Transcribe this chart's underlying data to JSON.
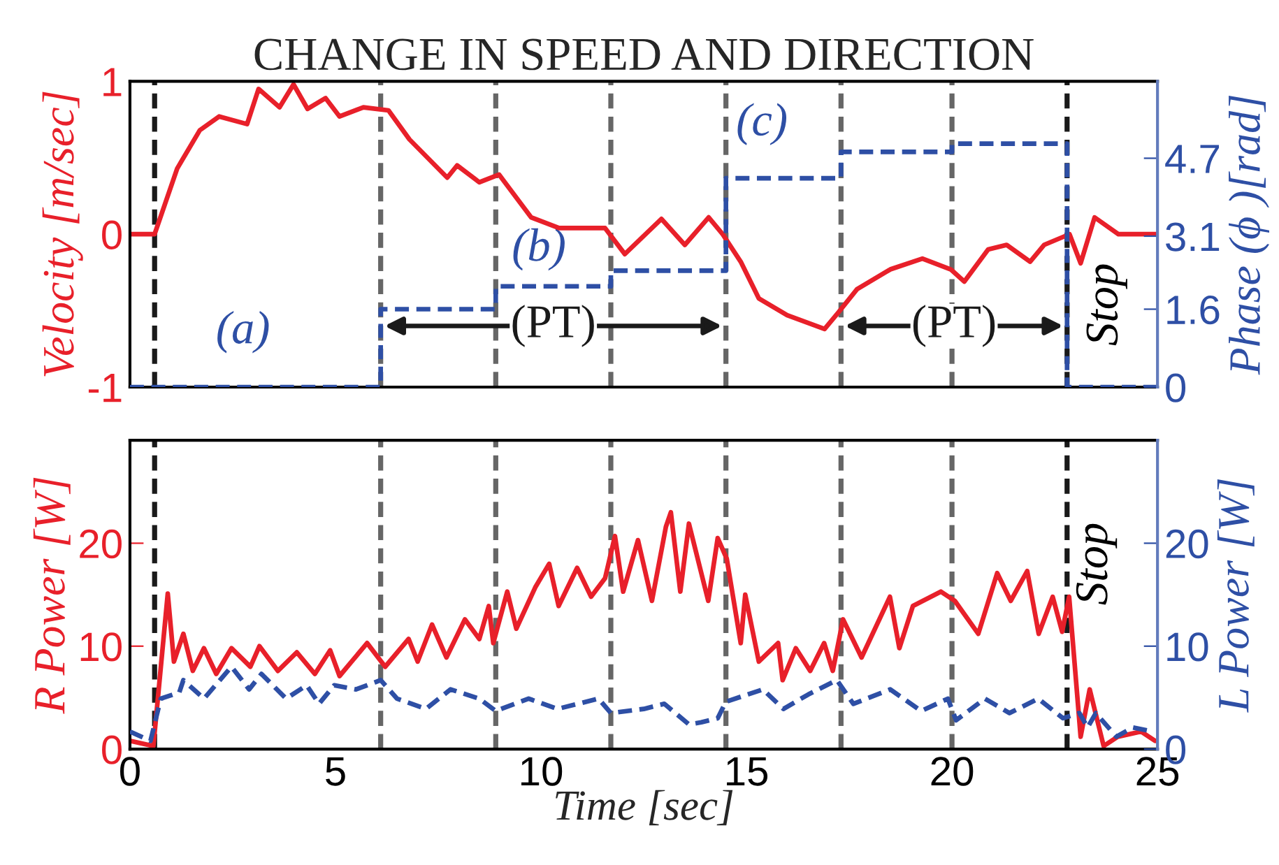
{
  "chart_data": [
    {
      "type": "line",
      "title": "CHANGE IN SPEED AND DIRECTION",
      "ylabel": "Velocity [m/sec]",
      "y2label": "Phase (ϕ )[rad]",
      "xlim": [
        0,
        25
      ],
      "xticks": [
        0,
        5,
        10,
        15,
        20,
        25
      ],
      "ylim": [
        -1,
        1
      ],
      "yticks": [
        -1,
        0,
        1
      ],
      "y2lim": [
        0,
        6.28
      ],
      "y2ticks": [
        0,
        1.6,
        3.1,
        4.7
      ],
      "tick_labels": "y",
      "grid": false,
      "series": [
        {
          "color": "#e8202a",
          "line_style": "solid",
          "x": [
            0,
            0.6,
            1.15,
            1.7,
            2.17,
            2.85,
            3.13,
            3.64,
            3.98,
            4.32,
            4.76,
            5.1,
            5.68,
            6.29,
            6.8,
            7.72,
            7.96,
            8.5,
            8.98,
            9.76,
            10.44,
            11.56,
            12.04,
            12.93,
            13.5,
            14.08,
            14.42,
            14.86,
            15.3,
            15.99,
            16.9,
            17.24,
            17.69,
            18.5,
            19.28,
            19.97,
            20.3,
            20.88,
            21.33,
            21.9,
            22.24,
            22.86,
            23.13,
            23.47,
            24.05,
            24.97
          ],
          "values": [
            0,
            0,
            0.43,
            0.68,
            0.77,
            0.72,
            0.95,
            0.83,
            0.98,
            0.82,
            0.89,
            0.77,
            0.83,
            0.81,
            0.62,
            0.37,
            0.45,
            0.34,
            0.39,
            0.11,
            0.04,
            0.04,
            -0.13,
            0.1,
            -0.07,
            0.11,
            0,
            -0.18,
            -0.42,
            -0.53,
            -0.62,
            -0.51,
            -0.36,
            -0.23,
            -0.16,
            -0.23,
            -0.31,
            -0.1,
            -0.07,
            -0.18,
            -0.07,
            0,
            -0.19,
            0.11,
            0,
            0
          ]
        },
        {
          "type": "step",
          "axis": "y2",
          "color": "#2e4fa5",
          "line_style": "dashed",
          "x": [
            0,
            6.1,
            8.9,
            11.7,
            14.5,
            17.3,
            20.0,
            22.8,
            25
          ],
          "values": [
            0,
            1.6,
            2.07,
            2.39,
            4.29,
            4.83,
            5.0,
            0,
            0
          ]
        }
      ],
      "ref_lines": [
        {
          "axis": "x",
          "value": 0.6,
          "color": "#1a1a1a",
          "line_style": "dashed"
        },
        {
          "axis": "x",
          "value": 6.1,
          "color": "#666666",
          "line_style": "dashed"
        },
        {
          "axis": "x",
          "value": 8.9,
          "color": "#666666",
          "line_style": "dashed"
        },
        {
          "axis": "x",
          "value": 11.7,
          "color": "#666666",
          "line_style": "dashed"
        },
        {
          "axis": "x",
          "value": 14.5,
          "color": "#666666",
          "line_style": "dashed"
        },
        {
          "axis": "x",
          "value": 17.3,
          "color": "#666666",
          "line_style": "dashed"
        },
        {
          "axis": "x",
          "value": 20.0,
          "color": "#666666",
          "line_style": "dashed"
        },
        {
          "axis": "x",
          "value": 22.8,
          "color": "#1a1a1a",
          "line_style": "dashed"
        }
      ],
      "annotations": [
        "(a)",
        "(b)",
        "(c)",
        "(PT)",
        "(PT)",
        "Stop"
      ]
    },
    {
      "type": "line",
      "xlabel": "Time [sec]",
      "ylabel": "R Power [W]",
      "y2label": "L Power [W]",
      "xlim": [
        0,
        25
      ],
      "xticks": [
        0,
        5,
        10,
        15,
        20,
        25
      ],
      "ylim": [
        0,
        30
      ],
      "yticks": [
        0,
        10,
        20
      ],
      "y2lim": [
        0,
        30
      ],
      "y2ticks": [
        0,
        10,
        20
      ],
      "grid": false,
      "series": [
        {
          "color": "#e8202a",
          "line_style": "solid",
          "x": [
            0,
            0.57,
            0.92,
            1.07,
            1.3,
            1.53,
            1.8,
            2.1,
            2.47,
            2.93,
            3.15,
            3.6,
            4.06,
            4.5,
            4.87,
            5.1,
            5.77,
            6.21,
            6.78,
            7.0,
            7.35,
            7.7,
            8.15,
            8.5,
            8.73,
            8.84,
            9.18,
            9.4,
            9.86,
            10.2,
            10.43,
            10.88,
            11.22,
            11.56,
            11.8,
            12.0,
            12.36,
            12.7,
            13.04,
            13.16,
            13.39,
            13.6,
            14.07,
            14.3,
            14.52,
            14.86,
            14.97,
            15.3,
            15.77,
            15.88,
            16.2,
            16.55,
            16.89,
            17.1,
            17.35,
            17.8,
            18.49,
            18.72,
            19.05,
            19.73,
            20.07,
            20.64,
            21.1,
            21.43,
            21.83,
            22.11,
            22.45,
            22.68,
            22.85,
            23.13,
            23.35,
            23.69,
            24.03,
            24.6,
            24.94
          ],
          "values": [
            0.8,
            0.3,
            15.1,
            8.5,
            11.2,
            7.6,
            9.8,
            7.3,
            9.8,
            8,
            10,
            7.6,
            9.4,
            7.3,
            9.6,
            7.1,
            10.3,
            8,
            10.7,
            8.5,
            12.1,
            8.9,
            12.6,
            10.7,
            13.9,
            10.3,
            15.3,
            11.7,
            15.7,
            18,
            13.9,
            17.6,
            14.8,
            16.6,
            20.7,
            15.3,
            20.3,
            14.4,
            21.6,
            23,
            15.3,
            21.9,
            14.4,
            20.5,
            18.5,
            10.3,
            15,
            8.5,
            10.3,
            6.7,
            9.8,
            7.6,
            10.3,
            7.6,
            12.6,
            8.9,
            14.8,
            9.8,
            13.9,
            15.3,
            14.4,
            11.2,
            17.1,
            14.4,
            17.3,
            11.2,
            14.8,
            11.4,
            14.8,
            1.2,
            5.8,
            0.3,
            1.2,
            1.7,
            0.8
          ]
        },
        {
          "axis": "y2",
          "color": "#2e4fa5",
          "line_style": "dashed",
          "x": [
            0,
            0.5,
            0.75,
            1.2,
            1.3,
            1.8,
            2.47,
            2.9,
            3.2,
            3.8,
            4.3,
            4.6,
            4.97,
            5.5,
            6.1,
            6.5,
            7.2,
            7.8,
            8.5,
            8.9,
            9.7,
            10.4,
            11.4,
            11.7,
            12.5,
            13.0,
            13.6,
            13.9,
            14.3,
            14.5,
            15.4,
            15.9,
            16.5,
            17.2,
            17.6,
            18.5,
            19.25,
            19.9,
            20.1,
            20.8,
            21.4,
            22.1,
            22.7,
            23.1,
            23.3,
            23.5,
            24.0,
            24.4,
            24.9
          ],
          "values": [
            1.7,
            0.8,
            4.9,
            5.5,
            6.7,
            4.9,
            8,
            5.8,
            7.3,
            4.9,
            6.2,
            4.4,
            6.2,
            5.8,
            6.7,
            4.9,
            3.9,
            5.8,
            4.9,
            3.7,
            4.9,
            3.9,
            4.9,
            3.5,
            3.9,
            4.4,
            2.4,
            2.6,
            3,
            4.6,
            5.8,
            3.9,
            5.3,
            6.7,
            4.4,
            5.8,
            3.7,
            4.9,
            2.8,
            4.9,
            3.5,
            4.9,
            3,
            3.5,
            2.1,
            3.5,
            1.2,
            2.1,
            1.7
          ]
        }
      ],
      "ref_lines": [
        {
          "axis": "x",
          "value": 0.6,
          "color": "#1a1a1a",
          "line_style": "dashed"
        },
        {
          "axis": "x",
          "value": 6.1,
          "color": "#666666",
          "line_style": "dashed"
        },
        {
          "axis": "x",
          "value": 8.9,
          "color": "#666666",
          "line_style": "dashed"
        },
        {
          "axis": "x",
          "value": 11.7,
          "color": "#666666",
          "line_style": "dashed"
        },
        {
          "axis": "x",
          "value": 14.5,
          "color": "#666666",
          "line_style": "dashed"
        },
        {
          "axis": "x",
          "value": 17.3,
          "color": "#666666",
          "line_style": "dashed"
        },
        {
          "axis": "x",
          "value": 20.0,
          "color": "#666666",
          "line_style": "dashed"
        },
        {
          "axis": "x",
          "value": 22.8,
          "color": "#1a1a1a",
          "line_style": "dashed"
        }
      ],
      "annotations": [
        "Stop"
      ]
    }
  ]
}
